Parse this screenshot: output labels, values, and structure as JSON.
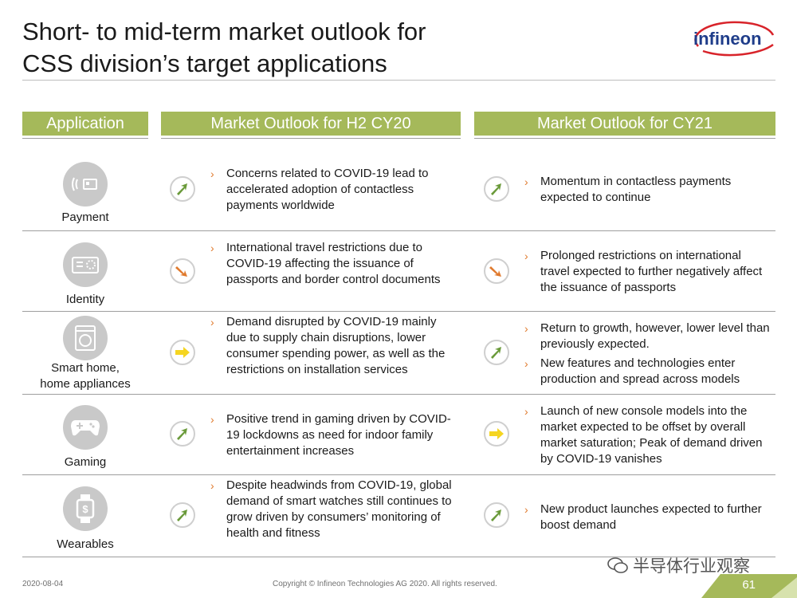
{
  "title_line1": "Short- to mid-term market outlook for",
  "title_line2": "CSS division’s target applications",
  "logo_text": "infineon",
  "headers": {
    "application": "Application",
    "h2cy20": "Market Outlook for H2 CY20",
    "cy21": "Market Outlook for CY21"
  },
  "rows": [
    {
      "app_label": "Payment",
      "icon": "contactless-payment-icon",
      "h2_trend": "up",
      "h2_bullets": [
        "Concerns related to COVID-19 lead to accelerated adoption of contactless payments worldwide"
      ],
      "cy21_trend": "up",
      "cy21_bullets": [
        "Momentum in contactless payments expected to continue"
      ]
    },
    {
      "app_label": "Identity",
      "icon": "id-card-icon",
      "h2_trend": "down",
      "h2_bullets": [
        "International travel restrictions due to COVID-19 affecting the issuance of passports and border control documents"
      ],
      "cy21_trend": "down",
      "cy21_bullets": [
        "Prolonged restrictions on international travel expected to further negatively affect the issuance of passports"
      ]
    },
    {
      "app_label_line1": "Smart home,",
      "app_label_line2": "home appliances",
      "icon": "washing-machine-icon",
      "h2_trend": "flat",
      "h2_bullets": [
        "Demand disrupted by COVID-19 mainly due to supply chain disruptions, lower consumer spending power, as well as the restrictions on installation services"
      ],
      "cy21_trend": "up",
      "cy21_bullets": [
        "Return to growth, however, lower level than previously expected.",
        "New features and technologies enter production and spread across models"
      ]
    },
    {
      "app_label": "Gaming",
      "icon": "gamepad-icon",
      "h2_trend": "up",
      "h2_bullets": [
        "Positive trend in gaming driven by COVID-19 lockdowns as need for indoor family entertainment increases"
      ],
      "cy21_trend": "flat",
      "cy21_bullets": [
        "Launch of new console models into the market expected to be offset by overall market saturation; Peak of demand driven by COVID-19 vanishes"
      ]
    },
    {
      "app_label": "Wearables",
      "icon": "smartwatch-icon",
      "h2_trend": "up",
      "h2_bullets": [
        "Despite headwinds from COVID-19, global demand of smart watches still continues to grow driven by consumers’ monitoring of health and fitness"
      ],
      "cy21_trend": "up",
      "cy21_bullets": [
        "New product launches expected to further boost demand"
      ]
    }
  ],
  "colors": {
    "accent_green": "#a5b95a",
    "trend_up": "#6a9a3a",
    "trend_down": "#e07a2d",
    "trend_flat": "#f5d520",
    "brand_red": "#d8232a",
    "brand_blue": "#1f3d8a"
  },
  "footer": {
    "date": "2020-08-04",
    "copyright": "Copyright © Infineon Technologies AG 2020. All rights reserved.",
    "page": "61"
  },
  "watermark": "半导体行业观察"
}
